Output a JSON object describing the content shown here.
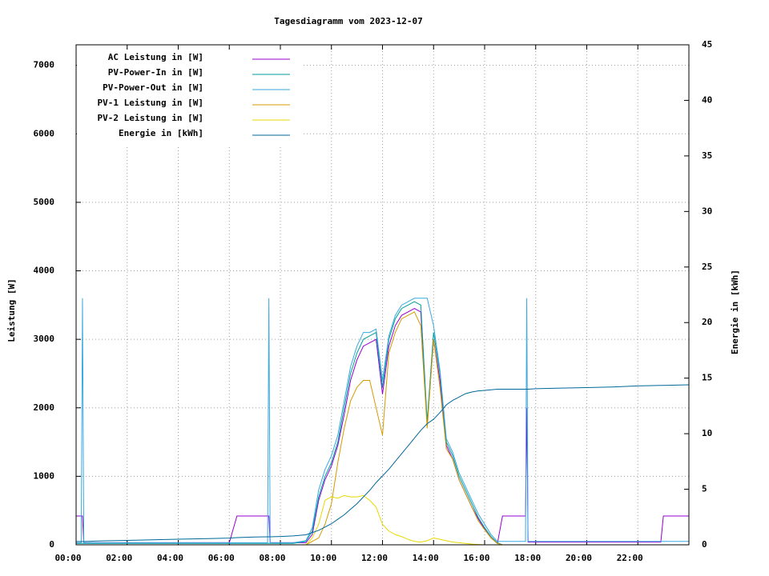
{
  "chart_data": {
    "type": "line",
    "title": "Tagesdiagramm vom 2023-12-07",
    "ylabel": "Leistung [W]",
    "y2label": "Energie in [kWh]",
    "xlim": [
      0,
      24
    ],
    "xticks": [
      {
        "value": 0,
        "label": "00:00"
      },
      {
        "value": 2,
        "label": "02:00"
      },
      {
        "value": 4,
        "label": "04:00"
      },
      {
        "value": 6,
        "label": "06:00"
      },
      {
        "value": 8,
        "label": "08:00"
      },
      {
        "value": 10,
        "label": "10:00"
      },
      {
        "value": 12,
        "label": "12:00"
      },
      {
        "value": 14,
        "label": "14:00"
      },
      {
        "value": 16,
        "label": "16:00"
      },
      {
        "value": 18,
        "label": "18:00"
      },
      {
        "value": 20,
        "label": "20:00"
      },
      {
        "value": 22,
        "label": "22:00"
      }
    ],
    "ylim": [
      0,
      7300
    ],
    "yticks": [
      0,
      1000,
      2000,
      3000,
      4000,
      5000,
      6000,
      7000
    ],
    "y2lim": [
      0,
      45
    ],
    "y2ticks": [
      0,
      5,
      10,
      15,
      20,
      25,
      30,
      35,
      40,
      45
    ],
    "grid": true,
    "legend": "top-left",
    "x": [
      0,
      0.2,
      0.25,
      0.3,
      1,
      2,
      3,
      4,
      5,
      6,
      6.3,
      7,
      7.5,
      7.55,
      7.6,
      8,
      8.5,
      9,
      9.25,
      9.5,
      9.75,
      10,
      10.25,
      10.5,
      10.75,
      11,
      11.25,
      11.5,
      11.75,
      12,
      12.25,
      12.5,
      12.75,
      13,
      13.25,
      13.5,
      13.75,
      14,
      14.25,
      14.5,
      14.75,
      15,
      15.25,
      15.5,
      15.75,
      16,
      16.25,
      16.5,
      16.7,
      17,
      17.5,
      17.6,
      17.65,
      17.7,
      18,
      19,
      20,
      21,
      22,
      22.9,
      23,
      24
    ],
    "series": [
      {
        "name": "AC Leistung in [W]",
        "color": "#9400d3",
        "values": [
          420,
          420,
          420,
          30,
          30,
          30,
          30,
          30,
          30,
          30,
          420,
          420,
          420,
          420,
          30,
          30,
          30,
          30,
          150,
          650,
          950,
          1150,
          1450,
          1900,
          2400,
          2700,
          2900,
          2950,
          3000,
          2200,
          2900,
          3200,
          3350,
          3400,
          3450,
          3400,
          1750,
          3000,
          2400,
          1450,
          1250,
          950,
          750,
          550,
          380,
          230,
          100,
          20,
          420,
          420,
          420,
          420,
          2000,
          40,
          40,
          40,
          40,
          40,
          40,
          40,
          420,
          420
        ]
      },
      {
        "name": "PV-Power-In in [W]",
        "color": "#009e9e",
        "values": [
          20,
          20,
          20,
          20,
          20,
          20,
          20,
          20,
          20,
          20,
          20,
          20,
          20,
          20,
          20,
          20,
          20,
          50,
          200,
          700,
          1000,
          1200,
          1500,
          2000,
          2500,
          2800,
          3000,
          3050,
          3100,
          2300,
          3000,
          3300,
          3450,
          3500,
          3550,
          3500,
          1800,
          3100,
          2500,
          1500,
          1300,
          1000,
          800,
          600,
          400,
          250,
          120,
          30,
          0,
          0,
          0,
          0,
          0,
          0,
          0,
          0,
          0,
          0,
          0,
          0,
          0,
          0
        ]
      },
      {
        "name": "PV-Power-Out in [W]",
        "color": "#38a8e0",
        "values": [
          30,
          30,
          3600,
          30,
          30,
          30,
          30,
          30,
          30,
          30,
          30,
          30,
          30,
          3600,
          30,
          30,
          30,
          60,
          250,
          800,
          1100,
          1300,
          1600,
          2100,
          2600,
          2900,
          3100,
          3100,
          3150,
          2400,
          3050,
          3350,
          3500,
          3550,
          3600,
          3600,
          3600,
          3200,
          2550,
          1550,
          1350,
          1050,
          850,
          650,
          450,
          300,
          150,
          50,
          50,
          50,
          50,
          50,
          3600,
          50,
          50,
          50,
          50,
          50,
          50,
          50,
          50,
          50
        ]
      },
      {
        "name": "PV-1 Leistung in [W]",
        "color": "#d49b00",
        "values": [
          0,
          0,
          0,
          0,
          0,
          0,
          0,
          0,
          0,
          0,
          0,
          0,
          0,
          0,
          0,
          0,
          0,
          0,
          50,
          100,
          300,
          600,
          1200,
          1700,
          2100,
          2300,
          2400,
          2400,
          2000,
          1600,
          2800,
          3100,
          3300,
          3350,
          3400,
          3200,
          1700,
          3000,
          2300,
          1400,
          1250,
          950,
          750,
          550,
          350,
          220,
          100,
          20,
          0,
          0,
          0,
          0,
          0,
          0,
          0,
          0,
          0,
          0,
          0,
          0,
          0,
          0
        ]
      },
      {
        "name": "PV-2 Leistung in [W]",
        "color": "#e8d800",
        "values": [
          0,
          0,
          0,
          0,
          0,
          0,
          0,
          0,
          0,
          0,
          0,
          0,
          0,
          0,
          0,
          0,
          0,
          0,
          100,
          300,
          650,
          700,
          680,
          720,
          700,
          700,
          720,
          650,
          550,
          300,
          200,
          150,
          120,
          80,
          50,
          40,
          60,
          100,
          80,
          60,
          40,
          30,
          20,
          10,
          5,
          0,
          0,
          0,
          0,
          0,
          0,
          0,
          0,
          0,
          0,
          0,
          0,
          0,
          0,
          0,
          0,
          0
        ]
      },
      {
        "name": "Energie in [kWh]",
        "color": "#00689a",
        "axis": "y2",
        "values": [
          0.3,
          0.3,
          0.3,
          0.3,
          0.35,
          0.4,
          0.45,
          0.5,
          0.55,
          0.6,
          0.65,
          0.7,
          0.72,
          0.72,
          0.72,
          0.75,
          0.8,
          0.9,
          1.1,
          1.3,
          1.6,
          1.9,
          2.3,
          2.7,
          3.2,
          3.7,
          4.3,
          4.9,
          5.6,
          6.2,
          6.8,
          7.5,
          8.2,
          8.9,
          9.6,
          10.3,
          10.9,
          11.3,
          11.9,
          12.6,
          13.0,
          13.3,
          13.6,
          13.75,
          13.85,
          13.9,
          13.95,
          14.0,
          14.0,
          14.0,
          14.0,
          14.0,
          14.0,
          14.0,
          14.05,
          14.1,
          14.15,
          14.2,
          14.3,
          14.35,
          14.35,
          14.4
        ]
      }
    ]
  }
}
